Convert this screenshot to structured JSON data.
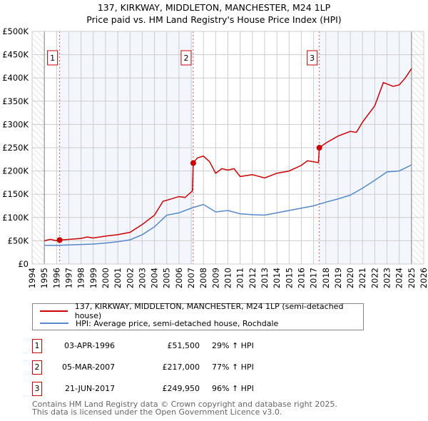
{
  "chart_data": {
    "type": "line",
    "title": "137, KIRKWAY, MIDDLETON, MANCHESTER, M24 1LP",
    "subtitle": "Price paid vs. HM Land Registry's House Price Index (HPI)",
    "xlim": [
      1994,
      2026
    ],
    "ylim": [
      0,
      500000
    ],
    "x_ticks": [
      "1994",
      "1995",
      "1996",
      "1997",
      "1998",
      "1999",
      "2000",
      "2001",
      "2002",
      "2003",
      "2004",
      "2005",
      "2006",
      "2007",
      "2008",
      "2009",
      "2010",
      "2011",
      "2012",
      "2013",
      "2014",
      "2015",
      "2016",
      "2017",
      "2018",
      "2019",
      "2020",
      "2021",
      "2022",
      "2023",
      "2024",
      "2025",
      "2026"
    ],
    "y_ticks": [
      {
        "v": 0,
        "label": "£0"
      },
      {
        "v": 50000,
        "label": "£50K"
      },
      {
        "v": 100000,
        "label": "£100K"
      },
      {
        "v": 150000,
        "label": "£150K"
      },
      {
        "v": 200000,
        "label": "£200K"
      },
      {
        "v": 250000,
        "label": "£250K"
      },
      {
        "v": 300000,
        "label": "£300K"
      },
      {
        "v": 350000,
        "label": "£350K"
      },
      {
        "v": 400000,
        "label": "£400K"
      },
      {
        "v": 450000,
        "label": "£450K"
      },
      {
        "v": 500000,
        "label": "£500K"
      }
    ],
    "grid": true,
    "data_range": [
      1995,
      2025
    ],
    "series": [
      {
        "name": "137, KIRKWAY, MIDDLETON, MANCHESTER, M24 1LP (semi-detached house)",
        "color": "#cc0000",
        "x": [
          1995,
          1995.5,
          1996,
          1996.25,
          1997,
          1998,
          1998.5,
          1999,
          2000,
          2001,
          2002,
          2003,
          2004,
          2004.7,
          2005,
          2006,
          2006.5,
          2007.1,
          2007.17,
          2007.5,
          2008,
          2008.5,
          2009,
          2009.5,
          2010,
          2010.5,
          2011,
          2012,
          2013,
          2014,
          2015,
          2016,
          2016.5,
          2017.4,
          2017.47,
          2018,
          2019,
          2020,
          2020.5,
          2021,
          2022,
          2022.7,
          2023.5,
          2024,
          2024.5,
          2025
        ],
        "y": [
          50000,
          53000,
          50000,
          51500,
          53000,
          55000,
          58000,
          56000,
          60000,
          63000,
          68000,
          85000,
          105000,
          135000,
          137000,
          145000,
          143000,
          157000,
          217000,
          228000,
          232000,
          220000,
          195000,
          205000,
          202000,
          205000,
          188000,
          192000,
          185000,
          195000,
          200000,
          212000,
          222000,
          218000,
          249950,
          260000,
          275000,
          285000,
          283000,
          305000,
          340000,
          390000,
          382000,
          385000,
          400000,
          420000
        ]
      },
      {
        "name": "HPI: Average price, semi-detached house, Rochdale",
        "color": "#5588cc",
        "x": [
          1995,
          1996,
          1997,
          1998,
          1999,
          2000,
          2001,
          2002,
          2003,
          2004,
          2005,
          2006,
          2007,
          2008,
          2009,
          2010,
          2011,
          2012,
          2013,
          2014,
          2015,
          2016,
          2017,
          2018,
          2019,
          2020,
          2021,
          2022,
          2023,
          2024,
          2025
        ],
        "y": [
          40000,
          40000,
          41000,
          42000,
          43000,
          45000,
          48000,
          52000,
          63000,
          80000,
          105000,
          110000,
          120000,
          128000,
          112000,
          115000,
          108000,
          106000,
          105000,
          110000,
          115000,
          120000,
          125000,
          133000,
          140000,
          148000,
          163000,
          180000,
          198000,
          200000,
          213000
        ]
      }
    ],
    "sales": [
      {
        "n": "1",
        "x": 1996.25,
        "y": 51500,
        "date": "03-APR-1996",
        "price": "£51,500",
        "hpi": "29% ↑ HPI"
      },
      {
        "n": "2",
        "x": 2007.17,
        "y": 217000,
        "date": "05-MAR-2007",
        "price": "£217,000",
        "hpi": "77% ↑ HPI"
      },
      {
        "n": "3",
        "x": 2017.47,
        "y": 249950,
        "date": "21-JUN-2017",
        "price": "£249,950",
        "hpi": "96% ↑ HPI"
      }
    ],
    "legend_placement": "below"
  },
  "footer": [
    "Contains HM Land Registry data © Crown copyright and database right 2025.",
    "This data is licensed under the Open Government Licence v3.0."
  ]
}
